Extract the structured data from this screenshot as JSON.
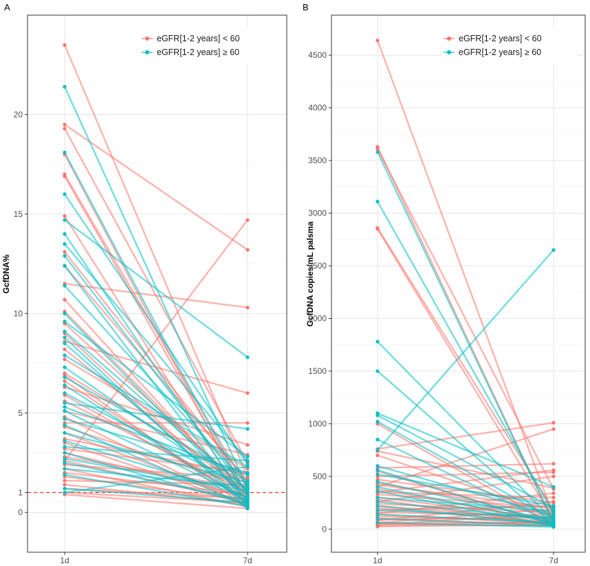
{
  "colors": {
    "low": "#F8766D",
    "high": "#00BFC4",
    "ref": "#E8231C"
  },
  "chart_data": [
    {
      "type": "line",
      "panel": "A",
      "ylabel": "GcfDNA%",
      "xlabel": "",
      "categories": [
        "1d",
        "7d"
      ],
      "ylim": [
        -2,
        25
      ],
      "yticks": [
        0,
        1,
        5,
        10,
        15,
        20
      ],
      "reference_line": {
        "y": 1,
        "style": "dashed",
        "color": "red"
      },
      "legend": {
        "position": "top-right",
        "entries": [
          "eGFR[1-2 years] < 60",
          "eGFR[1-2 years] ≥ 60"
        ]
      },
      "series": [
        {
          "name": "eGFR[1-2 years] < 60",
          "group": "low",
          "pairs": [
            [
              23.5,
              1.8
            ],
            [
              19.5,
              13.2
            ],
            [
              19.3,
              2.5
            ],
            [
              18.0,
              0.5
            ],
            [
              17.0,
              1.2
            ],
            [
              16.9,
              0.8
            ],
            [
              14.9,
              0.3
            ],
            [
              13.1,
              1.5
            ],
            [
              11.5,
              10.3
            ],
            [
              10.7,
              0.6
            ],
            [
              9.5,
              1.1
            ],
            [
              9.0,
              0.4
            ],
            [
              8.6,
              6.0
            ],
            [
              8.2,
              0.9
            ],
            [
              7.7,
              2.2
            ],
            [
              7.0,
              1.4
            ],
            [
              6.6,
              0.5
            ],
            [
              6.3,
              3.4
            ],
            [
              5.9,
              0.7
            ],
            [
              5.6,
              1.0
            ],
            [
              5.1,
              2.9
            ],
            [
              4.8,
              0.3
            ],
            [
              4.5,
              4.5
            ],
            [
              4.3,
              1.3
            ],
            [
              4.0,
              0.6
            ],
            [
              3.7,
              1.9
            ],
            [
              3.5,
              0.4
            ],
            [
              3.2,
              2.0
            ],
            [
              3.0,
              0.8
            ],
            [
              2.8,
              1.2
            ],
            [
              2.6,
              0.5
            ],
            [
              2.4,
              1.7
            ],
            [
              2.2,
              0.3
            ],
            [
              2.0,
              0.9
            ],
            [
              1.8,
              0.6
            ],
            [
              1.6,
              1.4
            ],
            [
              1.4,
              0.4
            ],
            [
              1.2,
              0.7
            ],
            [
              1.0,
              0.5
            ],
            [
              0.9,
              0.2
            ],
            [
              2.6,
              14.7
            ],
            [
              6.9,
              0.2
            ],
            [
              10.1,
              0.8
            ],
            [
              12.4,
              1.6
            ]
          ]
        },
        {
          "name": "eGFR[1-2 years] ≥ 60",
          "group": "high",
          "pairs": [
            [
              21.4,
              1.2
            ],
            [
              18.1,
              0.8
            ],
            [
              16.0,
              2.4
            ],
            [
              14.7,
              7.8
            ],
            [
              14.0,
              0.5
            ],
            [
              13.5,
              2.6
            ],
            [
              12.9,
              1.0
            ],
            [
              12.4,
              0.3
            ],
            [
              11.4,
              1.4
            ],
            [
              10.0,
              0.6
            ],
            [
              9.6,
              2.8
            ],
            [
              9.1,
              1.1
            ],
            [
              8.5,
              0.4
            ],
            [
              7.9,
              2.3
            ],
            [
              7.3,
              0.9
            ],
            [
              6.8,
              1.6
            ],
            [
              6.4,
              0.5
            ],
            [
              6.0,
              1.2
            ],
            [
              5.5,
              4.2
            ],
            [
              5.1,
              0.7
            ],
            [
              4.7,
              2.0
            ],
            [
              4.4,
              0.3
            ],
            [
              4.0,
              1.5
            ],
            [
              3.6,
              0.8
            ],
            [
              3.3,
              2.6
            ],
            [
              3.0,
              0.4
            ],
            [
              2.7,
              1.1
            ],
            [
              2.5,
              0.6
            ],
            [
              2.2,
              1.3
            ],
            [
              1.9,
              0.3
            ],
            [
              1.2,
              0.5
            ],
            [
              1.0,
              2.3
            ],
            [
              8.8,
              0.2
            ],
            [
              5.3,
              1.9
            ]
          ]
        }
      ]
    },
    {
      "type": "line",
      "panel": "B",
      "ylabel": "GcfDNA copies/mL palsma",
      "xlabel": "",
      "categories": [
        "1d",
        "7d"
      ],
      "ylim": [
        -220,
        4880
      ],
      "yticks": [
        0,
        500,
        1000,
        1500,
        2000,
        2500,
        3000,
        3500,
        4000,
        4500
      ],
      "legend": {
        "position": "top-right",
        "entries": [
          "eGFR[1-2 years] < 60",
          "eGFR[1-2 years] ≥ 60"
        ]
      },
      "series": [
        {
          "name": "eGFR[1-2 years] < 60",
          "group": "low",
          "pairs": [
            [
              4640,
              120
            ],
            [
              3630,
              60
            ],
            [
              3610,
              380
            ],
            [
              2860,
              180
            ],
            [
              2850,
              90
            ],
            [
              1000,
              40
            ],
            [
              760,
              1010
            ],
            [
              740,
              390
            ],
            [
              700,
              140
            ],
            [
              580,
              620
            ],
            [
              550,
              45
            ],
            [
              500,
              540
            ],
            [
              470,
              250
            ],
            [
              440,
              130
            ],
            [
              400,
              950
            ],
            [
              380,
              70
            ],
            [
              350,
              300
            ],
            [
              330,
              200
            ],
            [
              300,
              100
            ],
            [
              280,
              40
            ],
            [
              260,
              500
            ],
            [
              240,
              160
            ],
            [
              220,
              90
            ],
            [
              200,
              60
            ],
            [
              180,
              220
            ],
            [
              160,
              120
            ],
            [
              140,
              50
            ],
            [
              120,
              80
            ],
            [
              100,
              40
            ],
            [
              80,
              260
            ],
            [
              60,
              60
            ],
            [
              50,
              30
            ],
            [
              40,
              150
            ],
            [
              30,
              70
            ],
            [
              25,
              40
            ],
            [
              350,
              560
            ],
            [
              420,
              200
            ],
            [
              150,
              340
            ],
            [
              90,
              110
            ],
            [
              60,
              190
            ]
          ]
        },
        {
          "name": "eGFR[1-2 years] ≥ 60",
          "group": "high",
          "pairs": [
            [
              3580,
              60
            ],
            [
              3110,
              150
            ],
            [
              1780,
              80
            ],
            [
              1500,
              40
            ],
            [
              1100,
              400
            ],
            [
              1080,
              200
            ],
            [
              1020,
              90
            ],
            [
              850,
              50
            ],
            [
              750,
              2650
            ],
            [
              600,
              130
            ],
            [
              560,
              40
            ],
            [
              520,
              220
            ],
            [
              450,
              80
            ],
            [
              400,
              60
            ],
            [
              360,
              30
            ],
            [
              300,
              170
            ],
            [
              260,
              90
            ],
            [
              220,
              40
            ],
            [
              180,
              110
            ],
            [
              140,
              60
            ],
            [
              100,
              30
            ],
            [
              60,
              20
            ]
          ]
        }
      ]
    }
  ]
}
